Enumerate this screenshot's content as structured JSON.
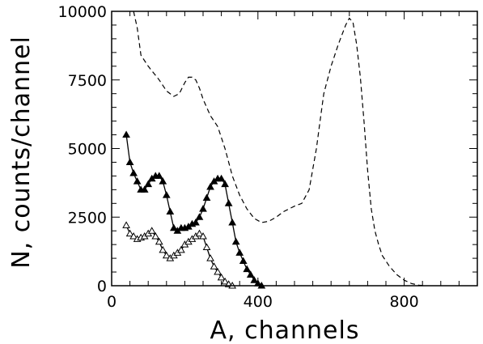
{
  "chart_data": {
    "type": "line",
    "xlabel": "A,  channels",
    "ylabel": "N,  counts/channel",
    "xlim": [
      0,
      1000
    ],
    "ylim": [
      0,
      10000
    ],
    "x_ticks": [
      0,
      400,
      800
    ],
    "x_tick_labels": [
      "0",
      "400",
      "800"
    ],
    "y_ticks": [
      0,
      2500,
      5000,
      7500,
      10000
    ],
    "y_tick_labels": [
      "0",
      "2500",
      "5000",
      "7500",
      "10000"
    ],
    "grid": false,
    "series": [
      {
        "style": "dashed",
        "color": "#000000",
        "x": [
          60,
          70,
          80,
          100,
          130,
          150,
          170,
          185,
          200,
          210,
          220,
          230,
          240,
          250,
          260,
          270,
          290,
          310,
          330,
          350,
          370,
          390,
          410,
          430,
          450,
          470,
          500,
          520,
          540,
          560,
          570,
          580,
          600,
          620,
          640,
          650,
          660,
          670,
          680,
          690,
          700,
          710,
          720,
          730,
          740,
          760,
          780,
          800,
          820,
          840,
          860
        ],
        "y": [
          10000,
          9400,
          8400,
          8000,
          7500,
          7100,
          6900,
          7000,
          7400,
          7600,
          7600,
          7500,
          7200,
          6800,
          6500,
          6200,
          5800,
          5000,
          4000,
          3300,
          2800,
          2450,
          2300,
          2350,
          2500,
          2700,
          2900,
          3000,
          3500,
          5000,
          6000,
          7000,
          8000,
          8800,
          9500,
          9750,
          9600,
          8800,
          7600,
          6000,
          4200,
          2800,
          2000,
          1500,
          1100,
          700,
          400,
          200,
          80,
          20,
          0
        ]
      },
      {
        "style": "solid",
        "marker": "filled-triangle",
        "color": "#000000",
        "x": [
          40,
          50,
          60,
          70,
          80,
          90,
          100,
          110,
          120,
          130,
          140,
          150,
          160,
          170,
          180,
          190,
          200,
          210,
          220,
          230,
          240,
          250,
          260,
          270,
          280,
          290,
          300,
          310,
          320,
          330,
          340,
          350,
          360,
          370,
          380,
          390,
          400,
          410
        ],
        "y": [
          5500,
          4500,
          4100,
          3800,
          3500,
          3500,
          3700,
          3900,
          4000,
          4000,
          3800,
          3300,
          2700,
          2100,
          2000,
          2100,
          2100,
          2150,
          2250,
          2300,
          2500,
          2800,
          3200,
          3600,
          3800,
          3900,
          3900,
          3700,
          3000,
          2300,
          1600,
          1200,
          900,
          600,
          400,
          200,
          80,
          0
        ]
      },
      {
        "style": "solid",
        "marker": "open-triangle",
        "color": "#000000",
        "x": [
          40,
          50,
          60,
          70,
          80,
          90,
          100,
          110,
          120,
          130,
          140,
          150,
          160,
          170,
          180,
          190,
          200,
          210,
          220,
          230,
          240,
          250,
          260,
          270,
          280,
          290,
          300,
          310,
          320,
          330
        ],
        "y": [
          2200,
          1900,
          1800,
          1700,
          1750,
          1800,
          1900,
          2000,
          1800,
          1600,
          1300,
          1100,
          1000,
          1100,
          1200,
          1300,
          1500,
          1600,
          1700,
          1800,
          1900,
          1800,
          1400,
          1000,
          700,
          500,
          300,
          150,
          50,
          0
        ]
      }
    ]
  }
}
